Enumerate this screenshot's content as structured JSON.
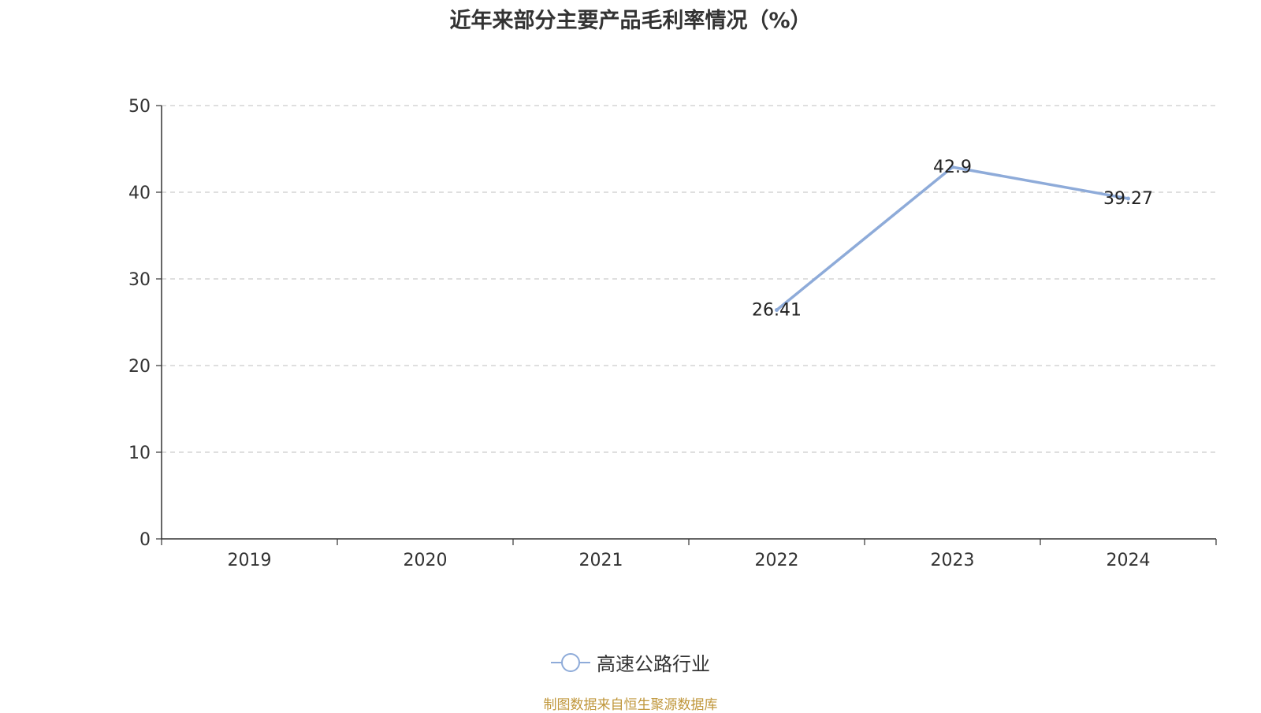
{
  "title": "近年来部分主要产品毛利率情况（%）",
  "source_note": "制图数据来自恒生聚源数据库",
  "colors": {
    "series": "#8eabd9",
    "axis": "#333333",
    "grid": "#cccccc",
    "source": "#c0973c"
  },
  "chart_data": {
    "type": "line",
    "title": "近年来部分主要产品毛利率情况（%）",
    "categories": [
      "2019",
      "2020",
      "2021",
      "2022",
      "2023",
      "2024"
    ],
    "series": [
      {
        "name": "高速公路行业",
        "values": [
          null,
          null,
          null,
          26.41,
          42.9,
          39.27
        ],
        "labels": [
          "",
          "",
          "",
          "26.41",
          "42.9",
          "39.27"
        ]
      }
    ],
    "ylim": [
      0,
      50
    ],
    "yticks": [
      "0",
      "10",
      "20",
      "30",
      "40",
      "50"
    ],
    "grid": true,
    "legend_position": "bottom"
  }
}
